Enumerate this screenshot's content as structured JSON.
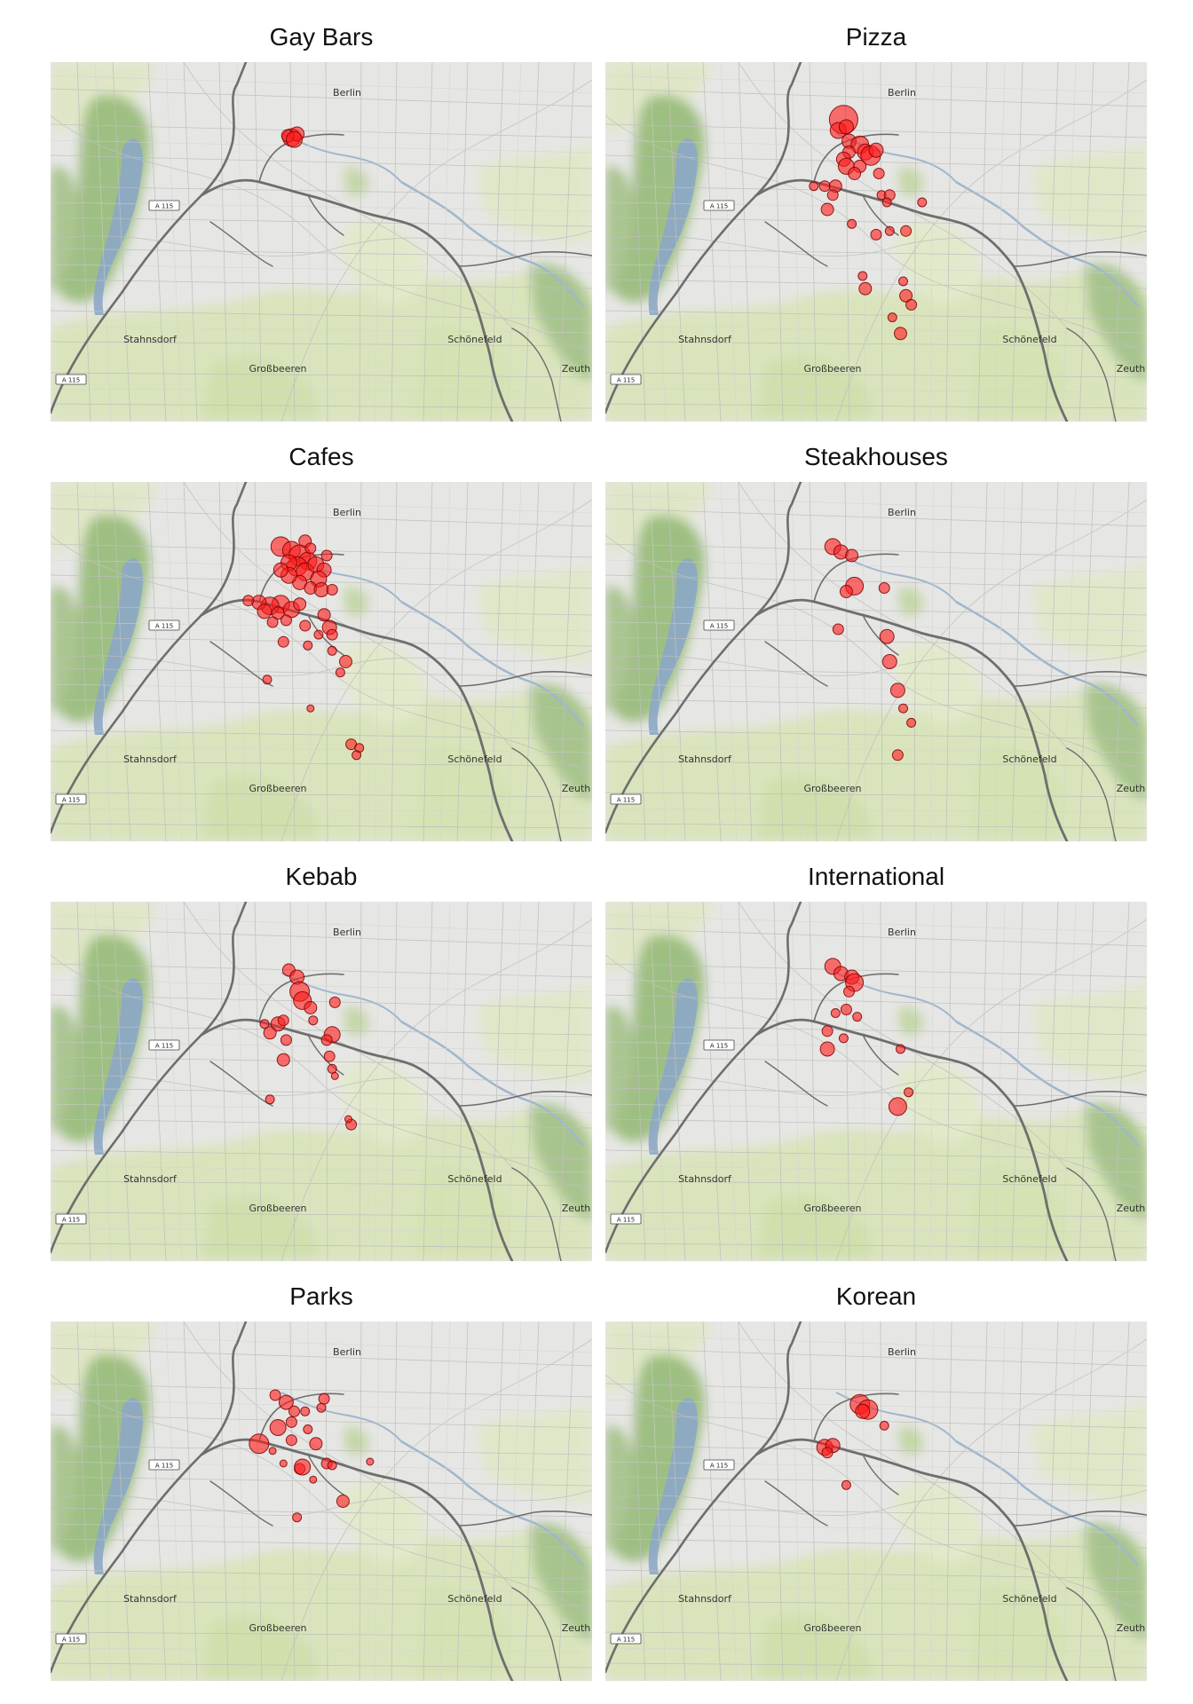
{
  "map_labels": {
    "city": "Berlin",
    "town_west": "Stahnsdorf",
    "town_south": "Großbeeren",
    "town_east": "Schönefeld",
    "town_southeast": "Zeuth",
    "road_shield": "A 115"
  },
  "marker_color": "#ff1a1a",
  "panels": [
    {
      "title": "Gay Bars",
      "markers": [
        {
          "x": 0.445,
          "y": 0.21,
          "r": 10
        },
        {
          "x": 0.455,
          "y": 0.2,
          "r": 8
        },
        {
          "x": 0.438,
          "y": 0.205,
          "r": 7
        },
        {
          "x": 0.45,
          "y": 0.215,
          "r": 9
        }
      ]
    },
    {
      "title": "Pizza",
      "markers": [
        {
          "x": 0.44,
          "y": 0.16,
          "r": 16
        },
        {
          "x": 0.43,
          "y": 0.19,
          "r": 9
        },
        {
          "x": 0.445,
          "y": 0.18,
          "r": 8
        },
        {
          "x": 0.45,
          "y": 0.22,
          "r": 8
        },
        {
          "x": 0.47,
          "y": 0.23,
          "r": 10
        },
        {
          "x": 0.48,
          "y": 0.25,
          "r": 9
        },
        {
          "x": 0.49,
          "y": 0.26,
          "r": 11
        },
        {
          "x": 0.5,
          "y": 0.245,
          "r": 8
        },
        {
          "x": 0.45,
          "y": 0.25,
          "r": 7
        },
        {
          "x": 0.44,
          "y": 0.27,
          "r": 8
        },
        {
          "x": 0.445,
          "y": 0.29,
          "r": 9
        },
        {
          "x": 0.47,
          "y": 0.29,
          "r": 7
        },
        {
          "x": 0.46,
          "y": 0.31,
          "r": 7
        },
        {
          "x": 0.405,
          "y": 0.345,
          "r": 6
        },
        {
          "x": 0.385,
          "y": 0.345,
          "r": 5
        },
        {
          "x": 0.425,
          "y": 0.345,
          "r": 7
        },
        {
          "x": 0.42,
          "y": 0.37,
          "r": 6
        },
        {
          "x": 0.41,
          "y": 0.41,
          "r": 7
        },
        {
          "x": 0.505,
          "y": 0.31,
          "r": 6
        },
        {
          "x": 0.51,
          "y": 0.37,
          "r": 5
        },
        {
          "x": 0.525,
          "y": 0.37,
          "r": 6
        },
        {
          "x": 0.52,
          "y": 0.39,
          "r": 5
        },
        {
          "x": 0.585,
          "y": 0.39,
          "r": 5
        },
        {
          "x": 0.455,
          "y": 0.45,
          "r": 5
        },
        {
          "x": 0.5,
          "y": 0.48,
          "r": 6
        },
        {
          "x": 0.525,
          "y": 0.47,
          "r": 5
        },
        {
          "x": 0.555,
          "y": 0.47,
          "r": 6
        },
        {
          "x": 0.48,
          "y": 0.63,
          "r": 7
        },
        {
          "x": 0.475,
          "y": 0.595,
          "r": 5
        },
        {
          "x": 0.55,
          "y": 0.61,
          "r": 5
        },
        {
          "x": 0.555,
          "y": 0.65,
          "r": 7
        },
        {
          "x": 0.565,
          "y": 0.675,
          "r": 6
        },
        {
          "x": 0.53,
          "y": 0.71,
          "r": 5
        },
        {
          "x": 0.545,
          "y": 0.755,
          "r": 7
        }
      ]
    },
    {
      "title": "Cafes",
      "markers": [
        {
          "x": 0.425,
          "y": 0.18,
          "r": 11
        },
        {
          "x": 0.445,
          "y": 0.19,
          "r": 10
        },
        {
          "x": 0.46,
          "y": 0.205,
          "r": 12
        },
        {
          "x": 0.475,
          "y": 0.22,
          "r": 10
        },
        {
          "x": 0.455,
          "y": 0.235,
          "r": 11
        },
        {
          "x": 0.44,
          "y": 0.225,
          "r": 9
        },
        {
          "x": 0.47,
          "y": 0.25,
          "r": 10
        },
        {
          "x": 0.49,
          "y": 0.23,
          "r": 9
        },
        {
          "x": 0.505,
          "y": 0.245,
          "r": 8
        },
        {
          "x": 0.495,
          "y": 0.27,
          "r": 9
        },
        {
          "x": 0.46,
          "y": 0.28,
          "r": 8
        },
        {
          "x": 0.44,
          "y": 0.26,
          "r": 9
        },
        {
          "x": 0.425,
          "y": 0.245,
          "r": 8
        },
        {
          "x": 0.48,
          "y": 0.295,
          "r": 7
        },
        {
          "x": 0.5,
          "y": 0.3,
          "r": 8
        },
        {
          "x": 0.47,
          "y": 0.165,
          "r": 7
        },
        {
          "x": 0.48,
          "y": 0.185,
          "r": 6
        },
        {
          "x": 0.51,
          "y": 0.205,
          "r": 6
        },
        {
          "x": 0.52,
          "y": 0.3,
          "r": 6
        },
        {
          "x": 0.425,
          "y": 0.34,
          "r": 10
        },
        {
          "x": 0.405,
          "y": 0.345,
          "r": 10
        },
        {
          "x": 0.385,
          "y": 0.335,
          "r": 8
        },
        {
          "x": 0.365,
          "y": 0.33,
          "r": 6
        },
        {
          "x": 0.395,
          "y": 0.36,
          "r": 8
        },
        {
          "x": 0.42,
          "y": 0.365,
          "r": 7
        },
        {
          "x": 0.445,
          "y": 0.355,
          "r": 9
        },
        {
          "x": 0.46,
          "y": 0.34,
          "r": 7
        },
        {
          "x": 0.435,
          "y": 0.385,
          "r": 6
        },
        {
          "x": 0.41,
          "y": 0.39,
          "r": 6
        },
        {
          "x": 0.47,
          "y": 0.4,
          "r": 6
        },
        {
          "x": 0.505,
          "y": 0.37,
          "r": 7
        },
        {
          "x": 0.515,
          "y": 0.405,
          "r": 8
        },
        {
          "x": 0.52,
          "y": 0.425,
          "r": 6
        },
        {
          "x": 0.495,
          "y": 0.425,
          "r": 5
        },
        {
          "x": 0.43,
          "y": 0.445,
          "r": 6
        },
        {
          "x": 0.475,
          "y": 0.455,
          "r": 5
        },
        {
          "x": 0.52,
          "y": 0.47,
          "r": 5
        },
        {
          "x": 0.545,
          "y": 0.5,
          "r": 7
        },
        {
          "x": 0.535,
          "y": 0.53,
          "r": 5
        },
        {
          "x": 0.4,
          "y": 0.55,
          "r": 5
        },
        {
          "x": 0.48,
          "y": 0.63,
          "r": 4
        },
        {
          "x": 0.555,
          "y": 0.73,
          "r": 6
        },
        {
          "x": 0.57,
          "y": 0.74,
          "r": 5
        },
        {
          "x": 0.565,
          "y": 0.76,
          "r": 5
        }
      ]
    },
    {
      "title": "Steakhouses",
      "markers": [
        {
          "x": 0.42,
          "y": 0.18,
          "r": 9
        },
        {
          "x": 0.435,
          "y": 0.195,
          "r": 8
        },
        {
          "x": 0.455,
          "y": 0.205,
          "r": 7
        },
        {
          "x": 0.46,
          "y": 0.29,
          "r": 10
        },
        {
          "x": 0.445,
          "y": 0.305,
          "r": 7
        },
        {
          "x": 0.515,
          "y": 0.295,
          "r": 6
        },
        {
          "x": 0.43,
          "y": 0.41,
          "r": 6
        },
        {
          "x": 0.52,
          "y": 0.43,
          "r": 8
        },
        {
          "x": 0.525,
          "y": 0.5,
          "r": 8
        },
        {
          "x": 0.54,
          "y": 0.58,
          "r": 8
        },
        {
          "x": 0.55,
          "y": 0.63,
          "r": 5
        },
        {
          "x": 0.565,
          "y": 0.67,
          "r": 5
        },
        {
          "x": 0.54,
          "y": 0.76,
          "r": 6
        }
      ]
    },
    {
      "title": "Kebab",
      "markers": [
        {
          "x": 0.44,
          "y": 0.19,
          "r": 7
        },
        {
          "x": 0.455,
          "y": 0.21,
          "r": 8
        },
        {
          "x": 0.46,
          "y": 0.25,
          "r": 11
        },
        {
          "x": 0.465,
          "y": 0.275,
          "r": 10
        },
        {
          "x": 0.48,
          "y": 0.295,
          "r": 7
        },
        {
          "x": 0.525,
          "y": 0.28,
          "r": 6
        },
        {
          "x": 0.42,
          "y": 0.34,
          "r": 8
        },
        {
          "x": 0.405,
          "y": 0.365,
          "r": 7
        },
        {
          "x": 0.395,
          "y": 0.34,
          "r": 5
        },
        {
          "x": 0.43,
          "y": 0.33,
          "r": 6
        },
        {
          "x": 0.485,
          "y": 0.33,
          "r": 5
        },
        {
          "x": 0.435,
          "y": 0.385,
          "r": 6
        },
        {
          "x": 0.52,
          "y": 0.37,
          "r": 9
        },
        {
          "x": 0.51,
          "y": 0.385,
          "r": 6
        },
        {
          "x": 0.43,
          "y": 0.44,
          "r": 7
        },
        {
          "x": 0.515,
          "y": 0.43,
          "r": 6
        },
        {
          "x": 0.52,
          "y": 0.465,
          "r": 5
        },
        {
          "x": 0.525,
          "y": 0.485,
          "r": 4
        },
        {
          "x": 0.405,
          "y": 0.55,
          "r": 5
        },
        {
          "x": 0.555,
          "y": 0.62,
          "r": 6
        },
        {
          "x": 0.55,
          "y": 0.605,
          "r": 4
        }
      ]
    },
    {
      "title": "International",
      "markers": [
        {
          "x": 0.42,
          "y": 0.18,
          "r": 9
        },
        {
          "x": 0.435,
          "y": 0.2,
          "r": 8
        },
        {
          "x": 0.455,
          "y": 0.21,
          "r": 8
        },
        {
          "x": 0.46,
          "y": 0.225,
          "r": 10
        },
        {
          "x": 0.45,
          "y": 0.25,
          "r": 6
        },
        {
          "x": 0.445,
          "y": 0.3,
          "r": 6
        },
        {
          "x": 0.425,
          "y": 0.31,
          "r": 5
        },
        {
          "x": 0.465,
          "y": 0.32,
          "r": 5
        },
        {
          "x": 0.41,
          "y": 0.36,
          "r": 6
        },
        {
          "x": 0.44,
          "y": 0.38,
          "r": 5
        },
        {
          "x": 0.41,
          "y": 0.41,
          "r": 8
        },
        {
          "x": 0.545,
          "y": 0.41,
          "r": 5
        },
        {
          "x": 0.56,
          "y": 0.53,
          "r": 5
        },
        {
          "x": 0.54,
          "y": 0.57,
          "r": 10
        }
      ]
    },
    {
      "title": "Parks",
      "markers": [
        {
          "x": 0.415,
          "y": 0.205,
          "r": 6
        },
        {
          "x": 0.435,
          "y": 0.225,
          "r": 8
        },
        {
          "x": 0.45,
          "y": 0.25,
          "r": 6
        },
        {
          "x": 0.47,
          "y": 0.25,
          "r": 5
        },
        {
          "x": 0.505,
          "y": 0.215,
          "r": 6
        },
        {
          "x": 0.5,
          "y": 0.24,
          "r": 5
        },
        {
          "x": 0.445,
          "y": 0.28,
          "r": 6
        },
        {
          "x": 0.42,
          "y": 0.295,
          "r": 9
        },
        {
          "x": 0.385,
          "y": 0.34,
          "r": 11
        },
        {
          "x": 0.445,
          "y": 0.33,
          "r": 6
        },
        {
          "x": 0.475,
          "y": 0.3,
          "r": 5
        },
        {
          "x": 0.49,
          "y": 0.34,
          "r": 7
        },
        {
          "x": 0.43,
          "y": 0.395,
          "r": 4
        },
        {
          "x": 0.46,
          "y": 0.41,
          "r": 6
        },
        {
          "x": 0.465,
          "y": 0.405,
          "r": 9
        },
        {
          "x": 0.51,
          "y": 0.395,
          "r": 6
        },
        {
          "x": 0.52,
          "y": 0.4,
          "r": 5
        },
        {
          "x": 0.59,
          "y": 0.39,
          "r": 4
        },
        {
          "x": 0.485,
          "y": 0.44,
          "r": 4
        },
        {
          "x": 0.54,
          "y": 0.5,
          "r": 7
        },
        {
          "x": 0.455,
          "y": 0.545,
          "r": 5
        },
        {
          "x": 0.41,
          "y": 0.36,
          "r": 4
        }
      ]
    },
    {
      "title": "Korean",
      "markers": [
        {
          "x": 0.47,
          "y": 0.23,
          "r": 11
        },
        {
          "x": 0.485,
          "y": 0.245,
          "r": 11
        },
        {
          "x": 0.475,
          "y": 0.25,
          "r": 8
        },
        {
          "x": 0.515,
          "y": 0.29,
          "r": 5
        },
        {
          "x": 0.405,
          "y": 0.35,
          "r": 9
        },
        {
          "x": 0.42,
          "y": 0.345,
          "r": 8
        },
        {
          "x": 0.41,
          "y": 0.365,
          "r": 6
        },
        {
          "x": 0.445,
          "y": 0.455,
          "r": 5
        }
      ]
    }
  ]
}
